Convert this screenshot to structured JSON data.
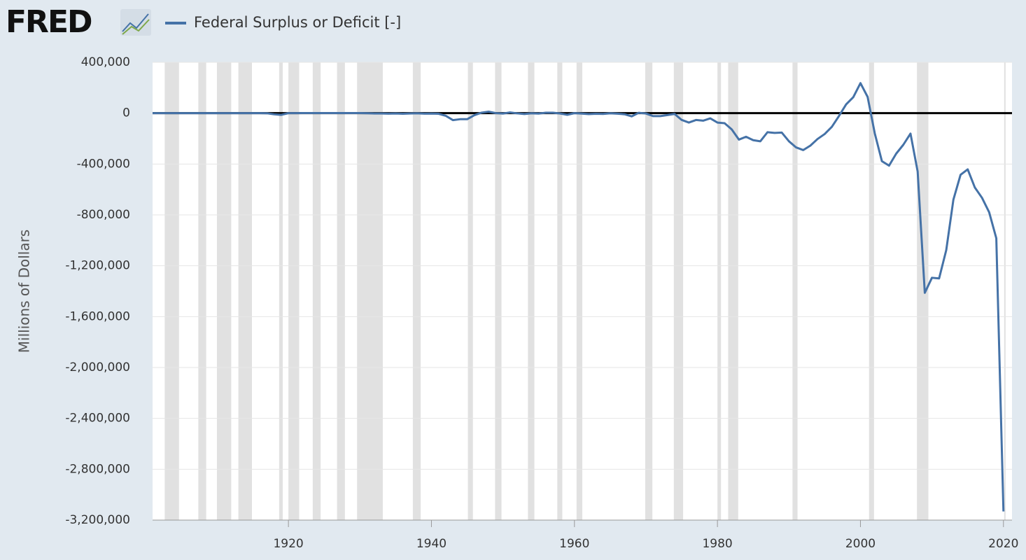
{
  "chart_data": {
    "type": "line",
    "brand": "FRED",
    "y_label": "Millions of Dollars",
    "x": [
      1901,
      1902,
      1903,
      1904,
      1905,
      1906,
      1907,
      1908,
      1909,
      1910,
      1911,
      1912,
      1913,
      1914,
      1915,
      1916,
      1917,
      1918,
      1919,
      1920,
      1921,
      1922,
      1923,
      1924,
      1925,
      1926,
      1927,
      1928,
      1929,
      1930,
      1931,
      1932,
      1933,
      1934,
      1935,
      1936,
      1937,
      1938,
      1939,
      1940,
      1941,
      1942,
      1943,
      1944,
      1945,
      1946,
      1947,
      1948,
      1949,
      1950,
      1951,
      1952,
      1953,
      1954,
      1955,
      1956,
      1957,
      1958,
      1959,
      1960,
      1961,
      1962,
      1963,
      1964,
      1965,
      1966,
      1967,
      1968,
      1969,
      1970,
      1971,
      1972,
      1973,
      1974,
      1975,
      1976,
      1977,
      1978,
      1979,
      1980,
      1981,
      1982,
      1983,
      1984,
      1985,
      1986,
      1987,
      1988,
      1989,
      1990,
      1991,
      1992,
      1993,
      1994,
      1995,
      1996,
      1997,
      1998,
      1999,
      2000,
      2001,
      2002,
      2003,
      2004,
      2005,
      2006,
      2007,
      2008,
      2009,
      2010,
      2011,
      2012,
      2013,
      2014,
      2015,
      2016,
      2017,
      2018,
      2019,
      2020
    ],
    "series": [
      {
        "name": "Federal Surplus or Deficit [-]",
        "color": "#4572a7",
        "values": [
          63,
          77,
          45,
          -43,
          -23,
          25,
          87,
          -57,
          -89,
          -18,
          11,
          3,
          0,
          0,
          -63,
          48,
          -853,
          -9033,
          -13363,
          291,
          509,
          736,
          713,
          963,
          717,
          865,
          1155,
          939,
          734,
          738,
          -462,
          -2735,
          -2602,
          -3630,
          -2791,
          -4425,
          -2777,
          -1177,
          -3862,
          -2920,
          -4941,
          -20503,
          -54554,
          -47557,
          -47553,
          -15936,
          4018,
          11796,
          580,
          -3119,
          6102,
          -1519,
          -6493,
          -1154,
          -2993,
          3947,
          3412,
          -2769,
          -12849,
          301,
          -3335,
          -7146,
          -4756,
          -5915,
          -1411,
          -3698,
          -8643,
          -25161,
          3242,
          -2842,
          -23033,
          -23373,
          -14908,
          -6135,
          -53242,
          -73732,
          -53659,
          -59185,
          -40726,
          -73830,
          -78968,
          -127977,
          -207802,
          -185367,
          -212308,
          -221227,
          -149730,
          -155178,
          -152639,
          -221036,
          -269238,
          -290321,
          -255051,
          -203186,
          -163952,
          -107431,
          -21884,
          69270,
          125610,
          236241,
          128236,
          -157758,
          -377585,
          -412727,
          -318346,
          -248181,
          -160701,
          -458553,
          -1412688,
          -1294373,
          -1299599,
          -1076573,
          -679775,
          -484602,
          -441960,
          -584651,
          -665446,
          -779137,
          -983592,
          -3131917
        ]
      }
    ],
    "recessions": [
      [
        1902.7,
        1904.7
      ],
      [
        1907.4,
        1908.5
      ],
      [
        1910.0,
        1912.0
      ],
      [
        1913.0,
        1914.9
      ],
      [
        1918.7,
        1919.2
      ],
      [
        1920.0,
        1921.5
      ],
      [
        1923.4,
        1924.5
      ],
      [
        1926.8,
        1927.9
      ],
      [
        1929.6,
        1933.2
      ],
      [
        1937.4,
        1938.5
      ],
      [
        1945.1,
        1945.8
      ],
      [
        1948.9,
        1949.8
      ],
      [
        1953.5,
        1954.4
      ],
      [
        1957.6,
        1958.3
      ],
      [
        1960.3,
        1961.1
      ],
      [
        1969.9,
        1970.9
      ],
      [
        1973.9,
        1975.2
      ],
      [
        1980.0,
        1980.5
      ],
      [
        1981.5,
        1982.9
      ],
      [
        1990.5,
        1991.2
      ],
      [
        2001.2,
        2001.9
      ],
      [
        2007.9,
        2009.5
      ],
      [
        2020.1,
        2020.3
      ]
    ],
    "xlim": [
      1901,
      2021
    ],
    "xticks": [
      1920,
      1940,
      1960,
      1980,
      2000,
      2020
    ],
    "ylim": [
      -3200000,
      400000
    ],
    "yticks": [
      {
        "value": 400000,
        "label": "400,000"
      },
      0,
      {
        "value": -400000,
        "label": "-400,000"
      },
      {
        "value": -800000,
        "label": "-800,000"
      },
      {
        "value": -1200000,
        "label": "-1,200,000"
      },
      {
        "value": -1600000,
        "label": "-1,600,000"
      },
      {
        "value": -2000000,
        "label": "-2,000,000"
      },
      {
        "value": -2400000,
        "label": "-2,400,000"
      },
      {
        "value": -2800000,
        "label": "-2,800,000"
      },
      {
        "value": -3200000,
        "label": "-3,200,000"
      }
    ],
    "grid": true
  }
}
